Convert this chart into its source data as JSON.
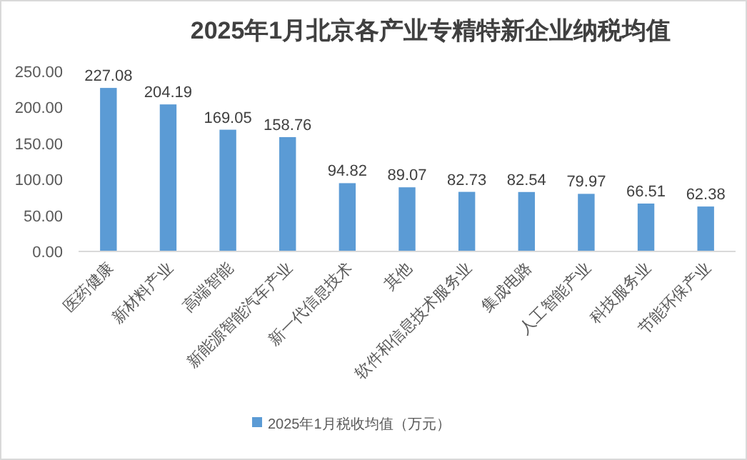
{
  "chart_data": {
    "type": "bar",
    "title": "2025年1月北京各产业专精特新企业纳税均值",
    "categories": [
      "医药健康",
      "新材料产业",
      "高端智能",
      "新能源智能汽车产业",
      "新一代信息技术",
      "其他",
      "软件和信息技术服务业",
      "集成电路",
      "人工智能产业",
      "科技服务业",
      "节能环保产业"
    ],
    "series": [
      {
        "name": "2025年1月税收均值（万元）",
        "color": "#5b9bd5",
        "values": [
          227.08,
          204.19,
          169.05,
          158.76,
          94.82,
          89.07,
          82.73,
          82.54,
          79.97,
          66.51,
          62.38
        ]
      }
    ],
    "ylim": [
      0,
      250
    ],
    "yticks": [
      {
        "value": 0,
        "label": "0.00"
      },
      {
        "value": 50,
        "label": "50.00"
      },
      {
        "value": 100,
        "label": "100.00"
      },
      {
        "value": 150,
        "label": "150.00"
      },
      {
        "value": 200,
        "label": "200.00"
      },
      {
        "value": 250,
        "label": "250.00"
      }
    ],
    "data_labels": true,
    "legend": "bottom",
    "grid": false
  }
}
